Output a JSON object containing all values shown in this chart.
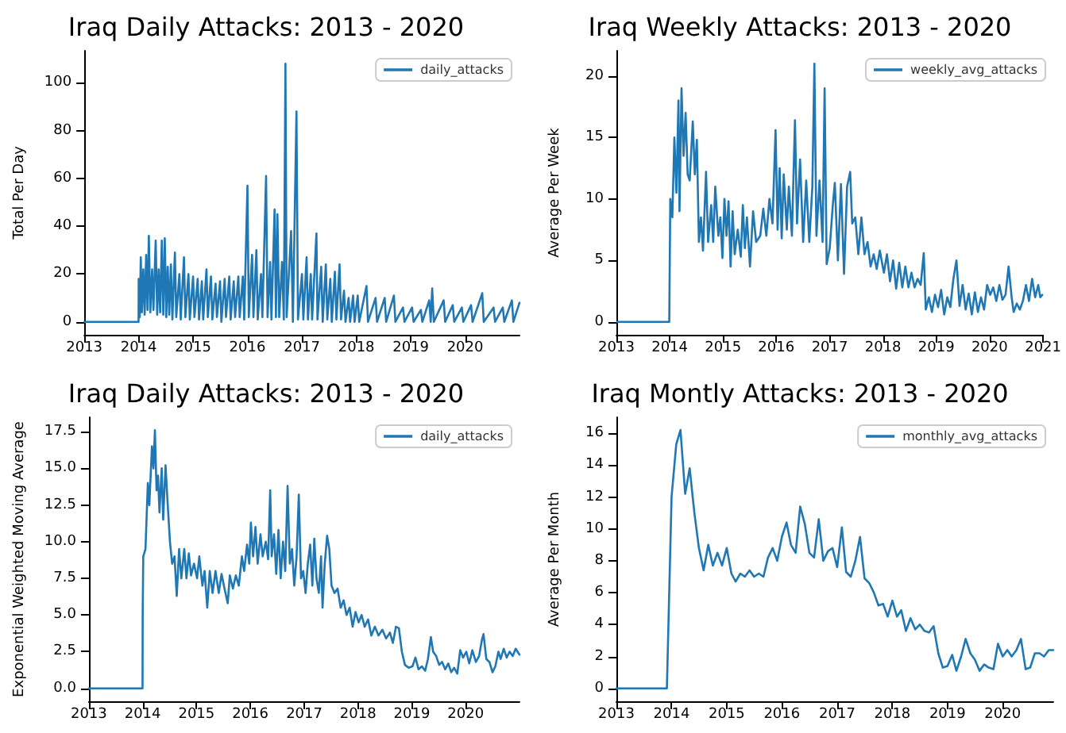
{
  "chart_data": [
    {
      "type": "line",
      "title": "Iraq Daily Attacks: 2013 - 2020",
      "ylabel": "Total Per Day",
      "legend": "top right",
      "grid": false,
      "marker": "none",
      "line_style": "solid",
      "xlim": [
        "2013-01-01",
        "2020-12-31"
      ],
      "xticks": [
        "2013",
        "2014",
        "2015",
        "2016",
        "2017",
        "2018",
        "2019",
        "2020"
      ],
      "ylim": [
        -5.4,
        113.4
      ],
      "yticks": [
        0,
        20,
        40,
        60,
        80,
        100
      ],
      "series": [
        {
          "name": "daily_attacks",
          "color": "#1f77b4",
          "x": [
            "2013-01-01",
            "2013-12-31",
            "2014-01-01",
            "2014-01-08",
            "2014-01-15",
            "2014-01-22",
            "2014-02-01",
            "2014-02-10",
            "2014-02-20",
            "2014-03-01",
            "2014-03-10",
            "2014-03-20",
            "2014-04-01",
            "2014-04-10",
            "2014-04-25",
            "2014-05-05",
            "2014-05-15",
            "2014-05-25",
            "2014-06-05",
            "2014-06-15",
            "2014-06-25",
            "2014-07-05",
            "2014-07-15",
            "2014-07-25",
            "2014-08-05",
            "2014-08-15",
            "2014-09-01",
            "2014-09-10",
            "2014-10-01",
            "2014-10-10",
            "2014-11-01",
            "2014-11-10",
            "2014-12-01",
            "2014-12-10",
            "2015-01-01",
            "2015-01-10",
            "2015-02-01",
            "2015-02-10",
            "2015-03-01",
            "2015-03-10",
            "2015-04-01",
            "2015-04-10",
            "2015-05-01",
            "2015-05-10",
            "2015-06-01",
            "2015-06-10",
            "2015-07-01",
            "2015-07-10",
            "2015-08-01",
            "2015-08-10",
            "2015-09-01",
            "2015-09-10",
            "2015-10-01",
            "2015-10-10",
            "2015-11-01",
            "2015-11-10",
            "2015-12-01",
            "2015-12-10",
            "2016-01-01",
            "2016-01-10",
            "2016-02-01",
            "2016-02-10",
            "2016-03-01",
            "2016-03-10",
            "2016-04-01",
            "2016-04-10",
            "2016-05-05",
            "2016-05-15",
            "2016-06-01",
            "2016-06-10",
            "2016-07-01",
            "2016-07-10",
            "2016-07-20",
            "2016-08-01",
            "2016-08-20",
            "2016-09-01",
            "2016-09-12",
            "2016-09-20",
            "2016-10-20",
            "2016-11-01",
            "2016-11-25",
            "2016-12-05",
            "2017-01-01",
            "2017-01-10",
            "2017-02-01",
            "2017-02-10",
            "2017-03-01",
            "2017-03-10",
            "2017-04-08",
            "2017-04-15",
            "2017-05-10",
            "2017-05-20",
            "2017-06-10",
            "2017-06-20",
            "2017-07-10",
            "2017-07-20",
            "2017-08-10",
            "2017-08-20",
            "2017-09-10",
            "2017-09-20",
            "2017-10-10",
            "2017-10-20",
            "2017-11-10",
            "2017-11-20",
            "2017-12-10",
            "2017-12-20",
            "2018-01-10",
            "2018-01-20",
            "2018-03-10",
            "2018-03-20",
            "2018-05-10",
            "2018-05-20",
            "2018-07-10",
            "2018-07-20",
            "2018-09-10",
            "2018-09-20",
            "2018-11-10",
            "2018-11-20",
            "2019-01-10",
            "2019-01-20",
            "2019-03-10",
            "2019-03-20",
            "2019-05-05",
            "2019-05-15",
            "2019-05-25",
            "2019-06-05",
            "2019-08-10",
            "2019-08-20",
            "2019-10-10",
            "2019-10-20",
            "2019-12-10",
            "2019-12-20",
            "2020-02-10",
            "2020-02-20",
            "2020-04-25",
            "2020-05-05",
            "2020-07-10",
            "2020-07-20",
            "2020-09-10",
            "2020-09-20",
            "2020-11-10",
            "2020-11-20",
            "2020-12-31"
          ],
          "values": [
            0,
            0,
            18,
            2,
            27,
            4,
            22,
            3,
            28,
            5,
            36,
            4,
            22,
            5,
            34,
            3,
            22,
            4,
            34,
            3,
            35,
            2,
            23,
            3,
            24,
            1,
            29,
            2,
            20,
            1,
            27,
            2,
            20,
            1,
            19,
            2,
            18,
            1,
            17,
            1,
            22,
            2,
            19,
            1,
            16,
            2,
            17,
            0,
            18,
            2,
            19,
            1,
            17,
            2,
            19,
            2,
            19,
            1,
            57,
            2,
            28,
            2,
            30,
            1,
            20,
            2,
            61,
            2,
            25,
            1,
            47,
            2,
            45,
            2,
            25,
            1,
            108,
            2,
            38,
            0,
            88,
            1,
            20,
            1,
            27,
            1,
            20,
            1,
            37,
            1,
            23,
            0,
            24,
            1,
            18,
            0,
            21,
            1,
            24,
            1,
            13,
            0,
            10,
            0,
            11,
            0,
            11,
            0,
            15,
            0,
            10,
            0,
            10,
            0,
            11,
            0,
            6,
            0,
            6,
            0,
            5,
            0,
            9,
            0,
            14,
            0,
            9,
            0,
            7,
            0,
            6,
            0,
            7,
            0,
            12,
            0,
            6,
            0,
            6,
            0,
            9,
            0,
            8
          ]
        }
      ]
    },
    {
      "type": "line",
      "title": "Iraq Weekly Attacks: 2013 - 2020",
      "ylabel": "Average Per Week",
      "legend": "top right",
      "grid": false,
      "marker": "none",
      "line_style": "solid",
      "xlim": [
        "2013-01-01",
        "2021-01-01"
      ],
      "xticks": [
        "2013",
        "2014",
        "2015",
        "2016",
        "2017",
        "2018",
        "2019",
        "2020",
        "2021"
      ],
      "ylim": [
        -1.05,
        22.05
      ],
      "yticks": [
        0,
        5,
        10,
        15,
        20
      ],
      "series": [
        {
          "name": "weekly_avg_attacks",
          "color": "#1f77b4",
          "x": [
            "2013-01-06",
            "2013-12-29",
            "2014-01-05",
            "2014-01-19",
            "2014-02-02",
            "2014-02-16",
            "2014-03-02",
            "2014-03-09",
            "2014-03-23",
            "2014-04-06",
            "2014-04-20",
            "2014-05-04",
            "2014-05-18",
            "2014-06-08",
            "2014-06-22",
            "2014-07-06",
            "2014-07-20",
            "2014-08-03",
            "2014-08-17",
            "2014-09-07",
            "2014-09-21",
            "2014-10-12",
            "2014-10-26",
            "2014-11-09",
            "2014-11-30",
            "2014-12-14",
            "2014-12-28",
            "2015-01-11",
            "2015-01-25",
            "2015-02-08",
            "2015-02-22",
            "2015-03-08",
            "2015-03-22",
            "2015-04-12",
            "2015-05-03",
            "2015-05-17",
            "2015-05-31",
            "2015-06-14",
            "2015-07-05",
            "2015-07-26",
            "2015-08-16",
            "2015-09-13",
            "2015-10-04",
            "2015-10-25",
            "2015-11-15",
            "2015-12-06",
            "2015-12-27",
            "2016-01-10",
            "2016-01-24",
            "2016-02-07",
            "2016-02-21",
            "2016-03-13",
            "2016-03-27",
            "2016-04-17",
            "2016-05-08",
            "2016-05-22",
            "2016-06-12",
            "2016-07-03",
            "2016-07-24",
            "2016-08-14",
            "2016-09-04",
            "2016-09-18",
            "2016-10-02",
            "2016-10-23",
            "2016-11-13",
            "2016-11-27",
            "2016-12-11",
            "2017-01-01",
            "2017-01-22",
            "2017-02-05",
            "2017-02-26",
            "2017-03-19",
            "2017-04-09",
            "2017-04-30",
            "2017-05-21",
            "2017-06-04",
            "2017-06-25",
            "2017-07-16",
            "2017-08-06",
            "2017-08-27",
            "2017-09-17",
            "2017-10-08",
            "2017-10-29",
            "2017-11-19",
            "2017-12-10",
            "2018-01-07",
            "2018-01-28",
            "2018-02-18",
            "2018-03-11",
            "2018-04-01",
            "2018-04-22",
            "2018-05-13",
            "2018-06-03",
            "2018-06-24",
            "2018-07-15",
            "2018-08-05",
            "2018-08-26",
            "2018-09-16",
            "2018-10-07",
            "2018-10-21",
            "2018-11-11",
            "2018-12-02",
            "2018-12-23",
            "2019-01-13",
            "2019-02-03",
            "2019-02-24",
            "2019-03-17",
            "2019-04-07",
            "2019-04-28",
            "2019-05-19",
            "2019-06-09",
            "2019-06-30",
            "2019-07-21",
            "2019-08-11",
            "2019-09-01",
            "2019-09-22",
            "2019-10-13",
            "2019-11-03",
            "2019-11-24",
            "2019-12-15",
            "2020-01-05",
            "2020-01-26",
            "2020-02-16",
            "2020-03-08",
            "2020-03-29",
            "2020-04-19",
            "2020-05-10",
            "2020-05-31",
            "2020-06-14",
            "2020-07-05",
            "2020-07-26",
            "2020-08-16",
            "2020-09-06",
            "2020-09-27",
            "2020-10-18",
            "2020-11-08",
            "2020-11-29",
            "2020-12-13",
            "2020-12-27"
          ],
          "values": [
            0,
            0,
            10,
            8.5,
            15,
            10.5,
            18,
            9,
            19,
            13.5,
            17,
            12,
            11.5,
            16.3,
            12,
            14.8,
            6.5,
            8.5,
            5.8,
            12.2,
            6.5,
            9.5,
            6.5,
            11,
            7,
            8.5,
            5.2,
            10,
            7,
            9.8,
            4.5,
            9,
            5.5,
            7.5,
            5.3,
            9.5,
            6,
            8.5,
            4.5,
            9,
            6.5,
            7,
            9.2,
            7,
            10,
            8,
            15.6,
            7.5,
            12.5,
            6.8,
            12,
            7.5,
            11,
            7,
            16.4,
            8,
            13.2,
            6.5,
            11.5,
            6.5,
            11,
            21,
            7,
            11.5,
            6.5,
            19,
            4.7,
            6,
            9.5,
            11.3,
            5,
            11.2,
            3.9,
            11,
            12.2,
            8,
            8.5,
            5.5,
            8.5,
            5.5,
            6.5,
            4.5,
            5.5,
            4.3,
            5.8,
            4,
            5.5,
            3.3,
            5,
            2.7,
            4.8,
            2.8,
            4.5,
            2.8,
            4,
            2.8,
            3.5,
            3,
            5.6,
            1,
            2,
            0.8,
            2.2,
            1.2,
            2.6,
            0.6,
            2,
            1.2,
            3.5,
            5,
            1.3,
            3,
            1,
            2.3,
            0.6,
            2.4,
            0.8,
            2,
            1,
            3,
            2.2,
            2.8,
            1.7,
            3,
            1.8,
            2.2,
            4.5,
            2,
            0.8,
            1.5,
            1,
            1.7,
            3,
            1.7,
            3.5,
            2,
            3,
            2,
            2.2
          ]
        }
      ]
    },
    {
      "type": "line",
      "title": "Iraq Daily Attacks: 2013 - 2020",
      "ylabel": "Exponential Weighted Moving Average",
      "legend": "top right",
      "grid": false,
      "marker": "none",
      "line_style": "solid",
      "xlim": [
        "2013-01-01",
        "2020-12-31"
      ],
      "xticks": [
        "2013",
        "2014",
        "2015",
        "2016",
        "2017",
        "2018",
        "2019",
        "2020"
      ],
      "ylim": [
        -0.88,
        18.48
      ],
      "yticks": [
        {
          "value": 0,
          "label": "0.0"
        },
        2.5,
        {
          "value": 5,
          "label": "5.0"
        },
        7.5,
        {
          "value": 10,
          "label": "10.0"
        },
        12.5,
        {
          "value": 15,
          "label": "15.0"
        },
        17.5
      ],
      "series": [
        {
          "name": "daily_attacks",
          "color": "#1f77b4",
          "x": [
            "2013-01-01",
            "2013-12-31",
            "2014-01-01",
            "2014-01-05",
            "2014-01-20",
            "2014-02-05",
            "2014-02-15",
            "2014-03-05",
            "2014-03-15",
            "2014-03-25",
            "2014-04-05",
            "2014-04-15",
            "2014-04-25",
            "2014-05-10",
            "2014-05-20",
            "2014-06-05",
            "2014-06-20",
            "2014-07-05",
            "2014-07-20",
            "2014-08-05",
            "2014-08-20",
            "2014-09-05",
            "2014-09-20",
            "2014-10-10",
            "2014-10-25",
            "2014-11-10",
            "2014-11-25",
            "2014-12-15",
            "2015-01-05",
            "2015-01-20",
            "2015-02-10",
            "2015-02-25",
            "2015-03-15",
            "2015-04-01",
            "2015-04-20",
            "2015-05-10",
            "2015-06-01",
            "2015-06-20",
            "2015-07-10",
            "2015-08-01",
            "2015-08-15",
            "2015-09-05",
            "2015-09-25",
            "2015-10-15",
            "2015-11-05",
            "2015-11-20",
            "2015-12-10",
            "2015-12-25",
            "2016-01-05",
            "2016-01-20",
            "2016-02-05",
            "2016-02-20",
            "2016-03-10",
            "2016-03-25",
            "2016-04-15",
            "2016-05-01",
            "2016-05-15",
            "2016-05-25",
            "2016-06-10",
            "2016-06-25",
            "2016-07-10",
            "2016-07-25",
            "2016-08-10",
            "2016-08-25",
            "2016-09-10",
            "2016-09-25",
            "2016-10-10",
            "2016-10-25",
            "2016-11-10",
            "2016-11-25",
            "2016-12-10",
            "2016-12-25",
            "2017-01-10",
            "2017-01-25",
            "2017-02-10",
            "2017-02-25",
            "2017-03-10",
            "2017-03-25",
            "2017-04-10",
            "2017-04-25",
            "2017-05-05",
            "2017-05-20",
            "2017-06-05",
            "2017-06-20",
            "2017-07-05",
            "2017-07-25",
            "2017-08-15",
            "2017-09-05",
            "2017-09-25",
            "2017-10-15",
            "2017-11-05",
            "2017-11-25",
            "2017-12-15",
            "2018-01-05",
            "2018-01-25",
            "2018-02-15",
            "2018-03-10",
            "2018-04-01",
            "2018-04-25",
            "2018-05-20",
            "2018-06-15",
            "2018-07-10",
            "2018-08-05",
            "2018-08-25",
            "2018-09-15",
            "2018-10-05",
            "2018-10-25",
            "2018-11-15",
            "2018-12-10",
            "2019-01-05",
            "2019-01-25",
            "2019-02-15",
            "2019-03-10",
            "2019-04-01",
            "2019-04-20",
            "2019-05-10",
            "2019-05-25",
            "2019-06-15",
            "2019-07-05",
            "2019-07-25",
            "2019-08-15",
            "2019-09-05",
            "2019-09-25",
            "2019-10-15",
            "2019-11-05",
            "2019-11-25",
            "2019-12-15",
            "2020-01-05",
            "2020-01-25",
            "2020-02-15",
            "2020-03-10",
            "2020-04-01",
            "2020-04-20",
            "2020-05-01",
            "2020-05-20",
            "2020-06-10",
            "2020-07-01",
            "2020-07-20",
            "2020-08-10",
            "2020-08-25",
            "2020-09-15",
            "2020-10-05",
            "2020-10-25",
            "2020-11-15",
            "2020-12-05",
            "2020-12-31"
          ],
          "values": [
            0,
            0,
            5,
            9,
            9.5,
            14,
            12.5,
            16.5,
            15,
            17.6,
            13.5,
            14.5,
            12,
            15,
            11.5,
            15.2,
            12.5,
            10,
            8.5,
            9,
            6.3,
            9.5,
            7.5,
            9.5,
            7.5,
            9.2,
            7.7,
            8.5,
            7.5,
            9,
            7,
            8,
            5.5,
            8,
            6.5,
            8,
            6.5,
            7.8,
            6.8,
            5.8,
            7.7,
            6.8,
            7.7,
            7,
            9,
            8,
            9.8,
            8.5,
            11.3,
            9,
            11,
            8.5,
            10.5,
            9,
            10,
            8.8,
            13.5,
            9,
            10.5,
            7.8,
            10.8,
            7.5,
            10,
            8,
            13.8,
            8.5,
            9.5,
            7,
            9,
            13.2,
            7.5,
            8,
            6.5,
            8.5,
            9.8,
            7,
            10.2,
            7.5,
            6.5,
            9,
            5.5,
            8.5,
            10.4,
            9.5,
            7,
            6.5,
            6.8,
            5.5,
            6,
            5,
            5.5,
            4.2,
            5.2,
            4.5,
            5,
            4.2,
            4.7,
            3.6,
            4.2,
            3.6,
            4,
            3.4,
            3.8,
            3.1,
            4.2,
            4.1,
            2.5,
            1.6,
            1.4,
            1.5,
            2.1,
            1.3,
            1.5,
            1.2,
            2,
            3.5,
            2.5,
            2.2,
            1.6,
            1.8,
            1.3,
            1.7,
            1.1,
            1.4,
            1,
            2.6,
            2.1,
            2.5,
            1.7,
            2.6,
            1.8,
            2.2,
            3.3,
            3.7,
            2,
            1.8,
            1.1,
            1.5,
            2.5,
            2,
            2.7,
            2.1,
            2.5,
            2.2,
            2.7,
            2.3
          ]
        }
      ]
    },
    {
      "type": "line",
      "title": "Iraq Montly Attacks: 2013 - 2020",
      "ylabel": "Average Per Month",
      "legend": "top right",
      "grid": false,
      "marker": "none",
      "line_style": "solid",
      "xlim": [
        "2013-01",
        "2020-12"
      ],
      "xticks": [
        "2013",
        "2014",
        "2015",
        "2016",
        "2017",
        "2018",
        "2019",
        "2020"
      ],
      "ylim": [
        -0.81,
        17
      ],
      "yticks": [
        0,
        2,
        4,
        6,
        8,
        10,
        12,
        14,
        16
      ],
      "series": [
        {
          "name": "monthly_avg_attacks",
          "color": "#1f77b4",
          "x": [
            "2013-01",
            "2013-02",
            "2013-03",
            "2013-04",
            "2013-05",
            "2013-06",
            "2013-07",
            "2013-08",
            "2013-09",
            "2013-10",
            "2013-11",
            "2013-12",
            "2014-01",
            "2014-02",
            "2014-03",
            "2014-04",
            "2014-05",
            "2014-06",
            "2014-07",
            "2014-08",
            "2014-09",
            "2014-10",
            "2014-11",
            "2014-12",
            "2015-01",
            "2015-02",
            "2015-03",
            "2015-04",
            "2015-05",
            "2015-06",
            "2015-07",
            "2015-08",
            "2015-09",
            "2015-10",
            "2015-11",
            "2015-12",
            "2016-01",
            "2016-02",
            "2016-03",
            "2016-04",
            "2016-05",
            "2016-06",
            "2016-07",
            "2016-08",
            "2016-09",
            "2016-10",
            "2016-11",
            "2016-12",
            "2017-01",
            "2017-02",
            "2017-03",
            "2017-04",
            "2017-05",
            "2017-06",
            "2017-07",
            "2017-08",
            "2017-09",
            "2017-10",
            "2017-11",
            "2017-12",
            "2018-01",
            "2018-02",
            "2018-03",
            "2018-04",
            "2018-05",
            "2018-06",
            "2018-07",
            "2018-08",
            "2018-09",
            "2018-10",
            "2018-11",
            "2018-12",
            "2019-01",
            "2019-02",
            "2019-03",
            "2019-04",
            "2019-05",
            "2019-06",
            "2019-07",
            "2019-08",
            "2019-09",
            "2019-10",
            "2019-11",
            "2019-12",
            "2020-01",
            "2020-02",
            "2020-03",
            "2020-04",
            "2020-05",
            "2020-06",
            "2020-07",
            "2020-08",
            "2020-09",
            "2020-10",
            "2020-11",
            "2020-12"
          ],
          "values": [
            0,
            0,
            0,
            0,
            0,
            0,
            0,
            0,
            0,
            0,
            0,
            0,
            12,
            15.3,
            16.2,
            12.2,
            13.8,
            11,
            8.8,
            7.4,
            9,
            7.7,
            8.5,
            7.7,
            8.8,
            7.2,
            6.7,
            7.2,
            7,
            7.4,
            7,
            7.2,
            7,
            8.2,
            8.8,
            8,
            9.5,
            10.4,
            9,
            8.5,
            11.4,
            10.3,
            8.5,
            8.2,
            10.6,
            8,
            8.6,
            8.8,
            7.6,
            10.1,
            7.3,
            7,
            8,
            9.5,
            6.9,
            6.6,
            6,
            5.2,
            5.3,
            4.5,
            5.5,
            4.5,
            4.9,
            3.6,
            4.4,
            3.7,
            4,
            3.6,
            3.5,
            3.9,
            2.2,
            1.3,
            1.4,
            2.1,
            1.1,
            2,
            3.1,
            2.2,
            1.8,
            1.1,
            1.5,
            1.3,
            1.2,
            2.8,
            2,
            2.4,
            2,
            2.4,
            3.1,
            1.2,
            1.3,
            2.2,
            2.2,
            2,
            2.4,
            2.4
          ]
        }
      ]
    }
  ]
}
